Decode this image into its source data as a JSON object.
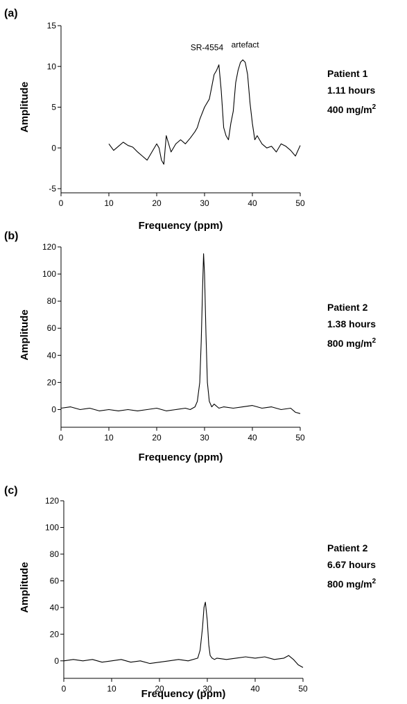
{
  "chart_data": [
    {
      "type": "line",
      "panel_label": "(a)",
      "xlabel": "Frequency (ppm)",
      "ylabel": "Amplitude",
      "xlim": [
        0,
        50
      ],
      "ylim": [
        -5,
        15
      ],
      "xticks": [
        0,
        10,
        20,
        30,
        40,
        50
      ],
      "yticks": [
        -5,
        0,
        5,
        10,
        15
      ],
      "grid": false,
      "annotations": [
        {
          "text": "SR-4554",
          "x": 30.5,
          "y": 12.0
        },
        {
          "text": "artefact",
          "x": 38.5,
          "y": 12.3
        }
      ],
      "side_text": {
        "line1": "Patient 1",
        "line2": "1.11 hours",
        "line3": "400 mg/m",
        "sup": "2"
      },
      "series": [
        {
          "x": [
            10,
            11,
            12,
            13,
            14,
            15,
            16,
            17,
            18,
            19,
            20,
            20.5,
            21,
            21.5,
            22,
            23,
            24,
            25,
            26,
            27,
            28,
            28.5,
            29,
            30,
            31,
            31.5,
            32,
            32.5,
            33,
            33.5,
            34,
            34.5,
            35,
            35.5,
            36,
            36.5,
            37,
            37.5,
            38,
            38.5,
            39,
            39.5,
            40,
            40.5,
            41,
            42,
            43,
            44,
            45,
            46,
            47,
            48,
            49,
            50
          ],
          "y": [
            0.5,
            -0.3,
            0.2,
            0.7,
            0.3,
            0.1,
            -0.5,
            -1.0,
            -1.5,
            -0.5,
            0.5,
            0,
            -1.5,
            -2.0,
            1.5,
            -0.5,
            0.5,
            1.0,
            0.5,
            1.2,
            2.0,
            2.5,
            3.5,
            5.0,
            6.0,
            7.5,
            9.0,
            9.5,
            10.2,
            7.0,
            2.5,
            1.5,
            1.0,
            3.0,
            4.5,
            8.0,
            9.5,
            10.5,
            10.8,
            10.5,
            9.0,
            5.5,
            3.0,
            1.0,
            1.5,
            0.5,
            0,
            0.2,
            -0.5,
            0.5,
            0.2,
            -0.3,
            -1.0,
            0.3
          ]
        }
      ]
    },
    {
      "type": "line",
      "panel_label": "(b)",
      "xlabel": "Frequency (ppm)",
      "ylabel": "Amplitude",
      "xlim": [
        0,
        50
      ],
      "ylim": [
        -10,
        120
      ],
      "xticks": [
        0,
        10,
        20,
        30,
        40,
        50
      ],
      "yticks": [
        0,
        20,
        40,
        60,
        80,
        100,
        120
      ],
      "grid": false,
      "side_text": {
        "line1": "Patient 2",
        "line2": "1.38 hours",
        "line3": "800 mg/m",
        "sup": "2"
      },
      "series": [
        {
          "x": [
            0,
            2,
            4,
            6,
            8,
            10,
            12,
            14,
            16,
            18,
            20,
            22,
            24,
            26,
            27,
            28,
            28.5,
            29,
            29.3,
            29.6,
            29.8,
            30,
            30.3,
            30.6,
            31,
            31.5,
            32,
            33,
            34,
            36,
            38,
            40,
            42,
            44,
            46,
            48,
            49,
            50
          ],
          "y": [
            1,
            2,
            0,
            1,
            -1,
            0,
            -1,
            0,
            -1,
            0,
            1,
            -1,
            0,
            1,
            0,
            2,
            6,
            20,
            50,
            90,
            115,
            100,
            55,
            20,
            6,
            2,
            4,
            1,
            2,
            1,
            2,
            3,
            1,
            2,
            0,
            1,
            -2,
            -3
          ]
        }
      ]
    },
    {
      "type": "line",
      "panel_label": "(c)",
      "xlabel": "Frequency (ppm)",
      "ylabel": "Amplitude",
      "xlim": [
        0,
        50
      ],
      "ylim": [
        -10,
        120
      ],
      "xticks": [
        0,
        10,
        20,
        30,
        40,
        50
      ],
      "yticks": [
        0,
        20,
        40,
        60,
        80,
        100,
        120
      ],
      "grid": false,
      "side_text": {
        "line1": "Patient 2",
        "line2": "6.67 hours",
        "line3": "800 mg/m",
        "sup": "2"
      },
      "series": [
        {
          "x": [
            0,
            2,
            4,
            6,
            8,
            10,
            12,
            14,
            16,
            18,
            20,
            22,
            24,
            26,
            28,
            28.5,
            29,
            29.3,
            29.6,
            30,
            30.3,
            30.6,
            31,
            31.5,
            32,
            34,
            36,
            38,
            40,
            42,
            44,
            46,
            47,
            48,
            49,
            50
          ],
          "y": [
            0,
            1,
            0,
            1,
            -1,
            0,
            1,
            -1,
            0,
            -2,
            -1,
            0,
            1,
            0,
            2,
            8,
            25,
            40,
            44,
            30,
            12,
            4,
            2,
            1,
            2,
            1,
            2,
            3,
            2,
            3,
            1,
            2,
            4,
            1,
            -3,
            -5
          ]
        }
      ]
    }
  ]
}
